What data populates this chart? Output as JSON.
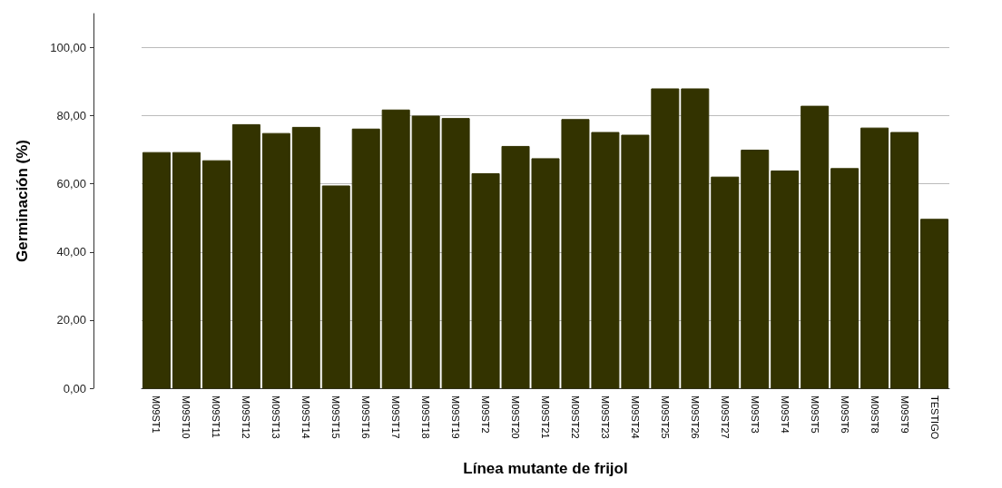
{
  "chart_data": {
    "type": "bar",
    "xlabel": "Línea mutante de frijol",
    "ylabel": "Germinación (%)",
    "categories": [
      "M09ST1",
      "M09ST10",
      "M09ST11",
      "M09ST12",
      "M09ST13",
      "M09ST14",
      "M09ST15",
      "M09ST16",
      "M09ST17",
      "M09ST18",
      "M09ST19",
      "M09ST2",
      "M09ST20",
      "M09ST21",
      "M09ST22",
      "M09ST23",
      "M09ST24",
      "M09ST25",
      "M09ST26",
      "M09ST27",
      "M09ST3",
      "M09ST4",
      "M09ST5",
      "M09ST6",
      "M09ST8",
      "M09ST9",
      "TESTIGO"
    ],
    "values": [
      69.2,
      69.2,
      66.8,
      77.4,
      74.8,
      76.6,
      59.4,
      76.1,
      81.7,
      79.9,
      79.2,
      63.0,
      71.0,
      67.4,
      78.9,
      75.1,
      74.3,
      87.9,
      87.9,
      62.0,
      69.9,
      63.8,
      82.8,
      64.5,
      76.4,
      75.1,
      49.6
    ],
    "color": "#333300",
    "ylim": [
      0,
      110
    ],
    "yticks": [
      {
        "value": 0,
        "label": "0,00"
      },
      {
        "value": 20,
        "label": "20,00"
      },
      {
        "value": 40,
        "label": "40,00"
      },
      {
        "value": 60,
        "label": "60,00"
      },
      {
        "value": 80,
        "label": "80,00"
      },
      {
        "value": 100,
        "label": "100,00"
      }
    ],
    "grid": "y"
  }
}
